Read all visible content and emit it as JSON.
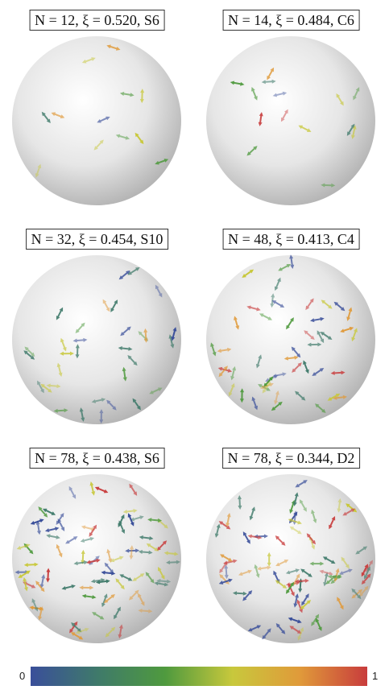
{
  "panels": [
    {
      "label": "N = 12, ξ = 0.520, S6",
      "n": 12
    },
    {
      "label": "N = 14, ξ = 0.484, C6",
      "n": 14
    },
    {
      "label": "N = 32, ξ = 0.454, S10",
      "n": 32
    },
    {
      "label": "N = 48, ξ = 0.413, C4",
      "n": 48
    },
    {
      "label": "N = 78, ξ = 0.438, S6",
      "n": 78
    },
    {
      "label": "N = 78, ξ = 0.344, D2",
      "n": 78
    }
  ],
  "colorbar": {
    "min_label": "0",
    "max_label": "1",
    "colors": [
      "#3a4f9a",
      "#3f7a6a",
      "#4f9a3e",
      "#c8c83c",
      "#e09a3a",
      "#c83c3c"
    ]
  }
}
